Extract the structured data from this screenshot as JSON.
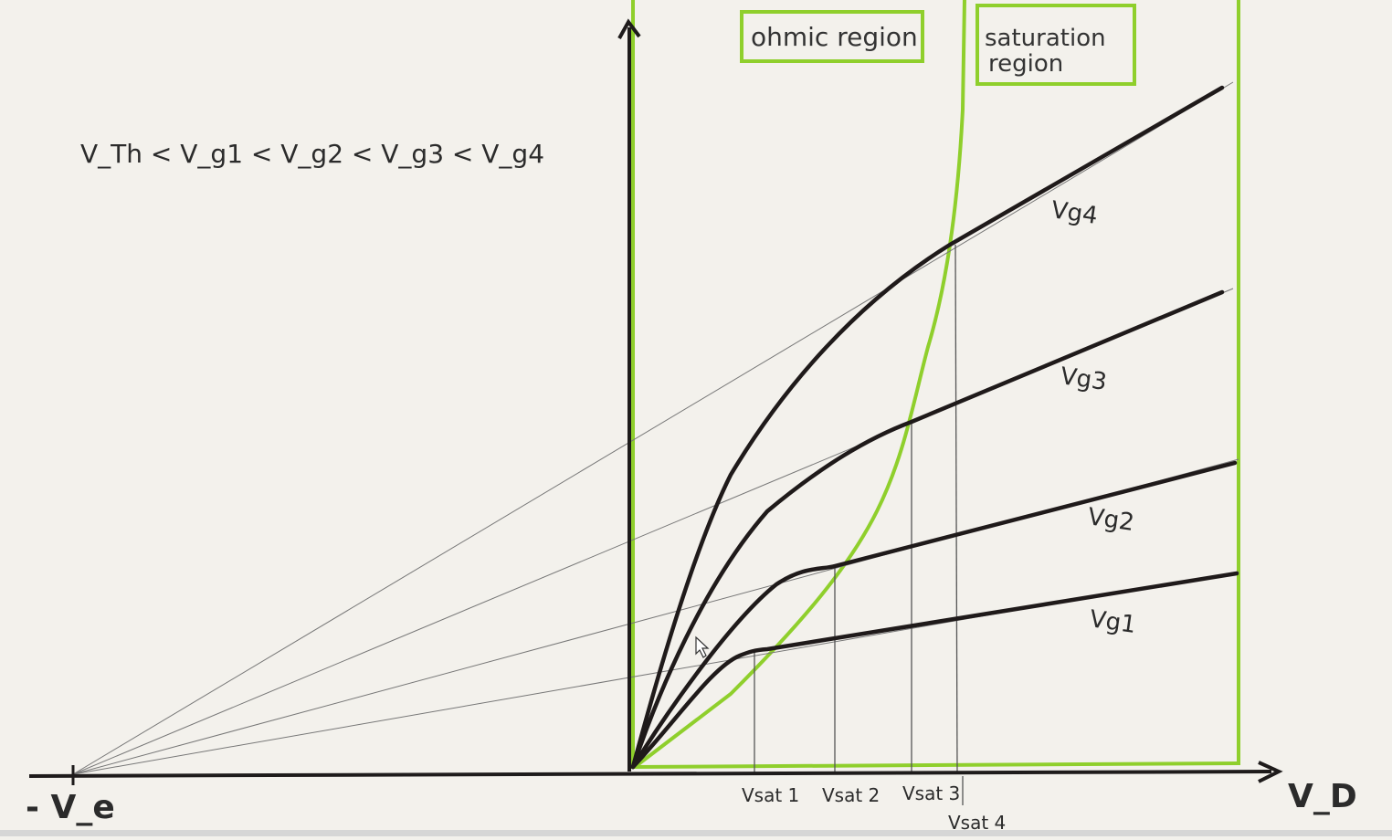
{
  "inequality": "V_Th < V_g1 < V_g2 < V_g3 < V_g4",
  "regions": {
    "ohmic": "ohmic region",
    "saturation_line1": "saturation",
    "saturation_line2": "region"
  },
  "axis": {
    "x_label": "V_D",
    "neg_label": "- V_e"
  },
  "curves": [
    {
      "label": "Vg4"
    },
    {
      "label": "Vg3"
    },
    {
      "label": "Vg2"
    },
    {
      "label": "Vg1"
    }
  ],
  "vsat": [
    "Vsat 1",
    "Vsat 2",
    "Vsat 3",
    "Vsat 4"
  ],
  "colors": {
    "curve": "#1f1a1a",
    "boundary": "#8fcf2c",
    "guide": "#6a6a6a",
    "paper": "#f3f1ec"
  }
}
